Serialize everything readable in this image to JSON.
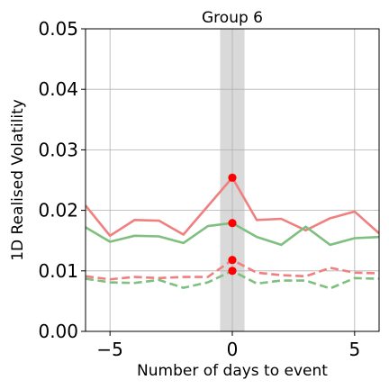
{
  "chart_data": {
    "type": "line",
    "title": "Group 6",
    "xlabel": "Number of days to event",
    "ylabel": "1D Realised Volatility",
    "xlim": [
      -6,
      6
    ],
    "ylim": [
      0,
      0.05
    ],
    "x_ticks": [
      -5,
      0,
      5
    ],
    "x_tick_labels": [
      "−5",
      "0",
      "5"
    ],
    "y_ticks": [
      0,
      0.01,
      0.02,
      0.03,
      0.04,
      0.05
    ],
    "y_tick_labels": [
      "0.00",
      "0.01",
      "0.02",
      "0.03",
      "0.04",
      "0.05"
    ],
    "grid": true,
    "event_band": [
      -0.5,
      0.5
    ],
    "x": [
      -6,
      -5,
      -4,
      -3,
      -2,
      -1,
      0,
      1,
      2,
      3,
      4,
      5,
      6
    ],
    "series": [
      {
        "color": "#f07f7f",
        "style": "solid",
        "values": [
          0.0208,
          0.0158,
          0.0184,
          0.0183,
          0.016,
          0.0207,
          0.0254,
          0.0184,
          0.0186,
          0.0167,
          0.0187,
          0.0198,
          0.0162
        ]
      },
      {
        "color": "#7fbf7f",
        "style": "solid",
        "values": [
          0.0172,
          0.0148,
          0.0158,
          0.0157,
          0.0146,
          0.0174,
          0.0179,
          0.0156,
          0.0143,
          0.0173,
          0.0143,
          0.0154,
          0.0156
        ]
      },
      {
        "color": "#f07f7f",
        "style": "dashed",
        "values": [
          0.0091,
          0.0086,
          0.009,
          0.0088,
          0.009,
          0.009,
          0.0118,
          0.0097,
          0.0093,
          0.0091,
          0.0105,
          0.0097,
          0.0096
        ]
      },
      {
        "color": "#7fbf7f",
        "style": "dashed",
        "values": [
          0.0087,
          0.0081,
          0.008,
          0.0085,
          0.0072,
          0.0081,
          0.01,
          0.0079,
          0.0084,
          0.0084,
          0.0071,
          0.0088,
          0.0087
        ]
      }
    ],
    "event_markers": {
      "color": "#ff0000",
      "x": 0,
      "values": [
        0.0254,
        0.0179,
        0.0118,
        0.01
      ]
    },
    "colors": {
      "grid": "#b0b0b0",
      "band": "#d9d9d9",
      "axis": "#000000"
    }
  }
}
